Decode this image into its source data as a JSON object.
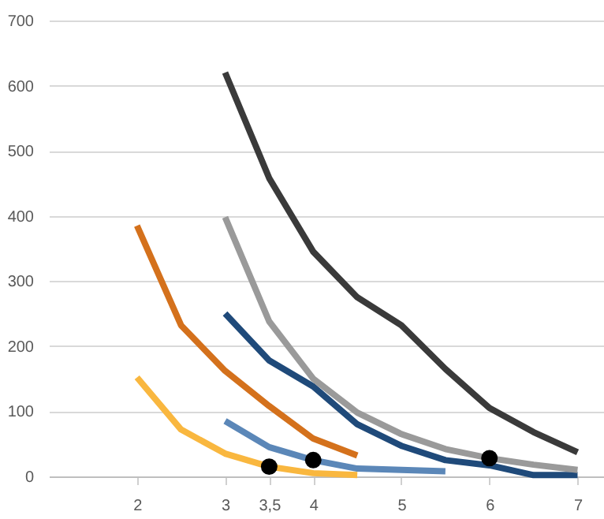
{
  "chart_data": {
    "type": "line",
    "series": [
      {
        "color": "#f9b73f",
        "x": [
          2,
          2.5,
          3,
          3.5,
          4,
          4.5
        ],
        "values": [
          152,
          72,
          35,
          15,
          5,
          2
        ]
      },
      {
        "color": "#d4711c",
        "x": [
          2,
          2.5,
          3,
          3.5,
          4,
          4.5
        ],
        "values": [
          385,
          232,
          162,
          108,
          58,
          32
        ]
      },
      {
        "color": "#5b87b8",
        "x": [
          3,
          3.5,
          4,
          4.5,
          5,
          5.5
        ],
        "values": [
          85,
          45,
          25,
          12,
          10,
          8
        ]
      },
      {
        "color": "#1f4a7a",
        "x": [
          3,
          3.5,
          4,
          4.5,
          5,
          5.5,
          6,
          6.5,
          7
        ],
        "values": [
          250,
          178,
          138,
          80,
          47,
          25,
          17,
          2,
          2
        ]
      },
      {
        "color": "#9a9a9a",
        "x": [
          3,
          3.5,
          4,
          4.5,
          5,
          5.5,
          6,
          6.5,
          7
        ],
        "values": [
          398,
          238,
          150,
          98,
          65,
          42,
          28,
          18,
          10
        ]
      },
      {
        "color": "#3a3a3a",
        "x": [
          3,
          3.5,
          4,
          4.5,
          5,
          5.5,
          6,
          6.5,
          7
        ],
        "values": [
          620,
          458,
          345,
          275,
          232,
          165,
          105,
          68,
          37
        ]
      },
      {
        "type": "scatter",
        "marker": "circle",
        "color": "#000000",
        "x": [
          3.5,
          4,
          6
        ],
        "values": [
          15,
          25,
          28
        ]
      }
    ],
    "xlim": [
      1,
      7.3
    ],
    "xticks": [
      2,
      3,
      {
        "value": 3.5,
        "label": "3,5"
      },
      4,
      5,
      6,
      7
    ],
    "ylim": [
      0,
      700
    ],
    "yticks": [
      0,
      100,
      200,
      300,
      400,
      500,
      600,
      700
    ],
    "grid": "y"
  }
}
